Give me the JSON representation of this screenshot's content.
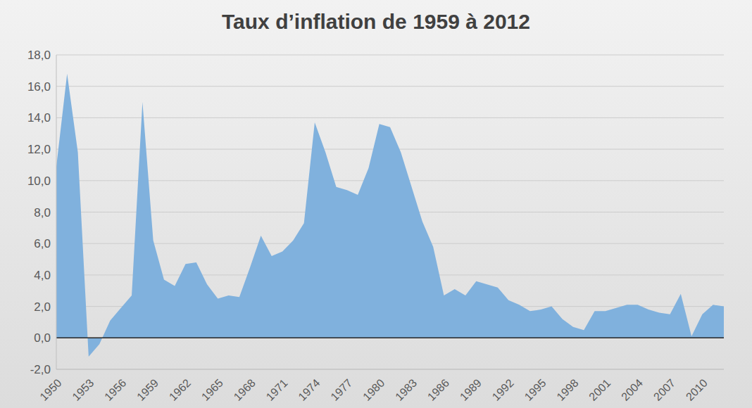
{
  "chart_data": {
    "type": "area",
    "title": "Taux d’inflation de 1959 à 2012",
    "x": [
      1950,
      1951,
      1952,
      1953,
      1954,
      1955,
      1956,
      1957,
      1958,
      1959,
      1960,
      1961,
      1962,
      1963,
      1964,
      1965,
      1966,
      1967,
      1968,
      1969,
      1970,
      1971,
      1972,
      1973,
      1974,
      1975,
      1976,
      1977,
      1978,
      1979,
      1980,
      1981,
      1982,
      1983,
      1984,
      1985,
      1986,
      1987,
      1988,
      1989,
      1990,
      1991,
      1992,
      1993,
      1994,
      1995,
      1996,
      1997,
      1998,
      1999,
      2000,
      2001,
      2002,
      2003,
      2004,
      2005,
      2006,
      2007,
      2008,
      2009,
      2010,
      2011,
      2012
    ],
    "values": [
      10.9,
      16.8,
      11.8,
      -1.2,
      -0.4,
      1.1,
      1.9,
      2.7,
      15.0,
      6.2,
      3.7,
      3.3,
      4.7,
      4.8,
      3.4,
      2.5,
      2.7,
      2.6,
      4.5,
      6.5,
      5.2,
      5.5,
      6.2,
      7.3,
      13.7,
      11.8,
      9.6,
      9.4,
      9.1,
      10.8,
      13.6,
      13.4,
      11.8,
      9.6,
      7.4,
      5.8,
      2.7,
      3.1,
      2.7,
      3.6,
      3.4,
      3.2,
      2.4,
      2.1,
      1.7,
      1.8,
      2.0,
      1.2,
      0.7,
      0.5,
      1.7,
      1.7,
      1.9,
      2.1,
      2.1,
      1.8,
      1.6,
      1.5,
      2.8,
      0.1,
      1.5,
      2.1,
      2.0
    ],
    "color": "#80b1dd",
    "xlim": [
      1950,
      2012
    ],
    "xticks": [
      1950,
      1953,
      1956,
      1959,
      1962,
      1965,
      1968,
      1971,
      1974,
      1977,
      1980,
      1983,
      1986,
      1989,
      1992,
      1995,
      1998,
      2001,
      2004,
      2007,
      2010
    ],
    "ylim": [
      -2,
      18
    ],
    "yticks": [
      {
        "value": -2,
        "label": "-2,0"
      },
      {
        "value": 0,
        "label": "0,0"
      },
      {
        "value": 2,
        "label": "2,0"
      },
      {
        "value": 4,
        "label": "4,0"
      },
      {
        "value": 6,
        "label": "6,0"
      },
      {
        "value": 8,
        "label": "8,0"
      },
      {
        "value": 10,
        "label": "10,0"
      },
      {
        "value": 12,
        "label": "12,0"
      },
      {
        "value": 14,
        "label": "14,0"
      },
      {
        "value": 16,
        "label": "16,0"
      },
      {
        "value": 18,
        "label": "18,0"
      }
    ],
    "grid": true
  }
}
